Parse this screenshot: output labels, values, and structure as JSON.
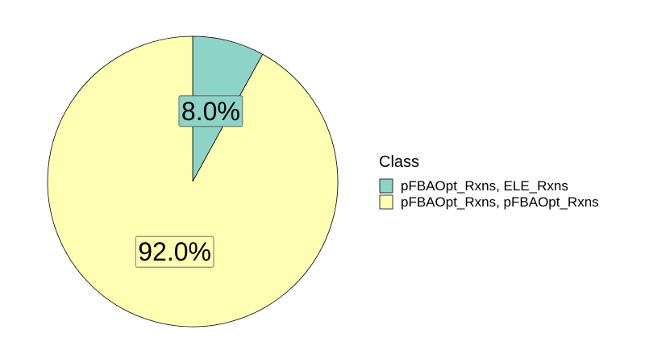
{
  "chart_data": {
    "type": "pie",
    "title": "",
    "legend_position": "right",
    "legend_title": "Class",
    "start_angle_deg": 0,
    "direction": "clockwise",
    "slices": [
      {
        "name": "pFBAOpt_Rxns, ELE_Rxns",
        "value": 8.0,
        "label": "8.0%",
        "color": "#8DD3C7"
      },
      {
        "name": "pFBAOpt_Rxns, pFBAOpt_Rxns",
        "value": 92.0,
        "label": "92.0%",
        "color": "#FFFFB3"
      }
    ]
  }
}
